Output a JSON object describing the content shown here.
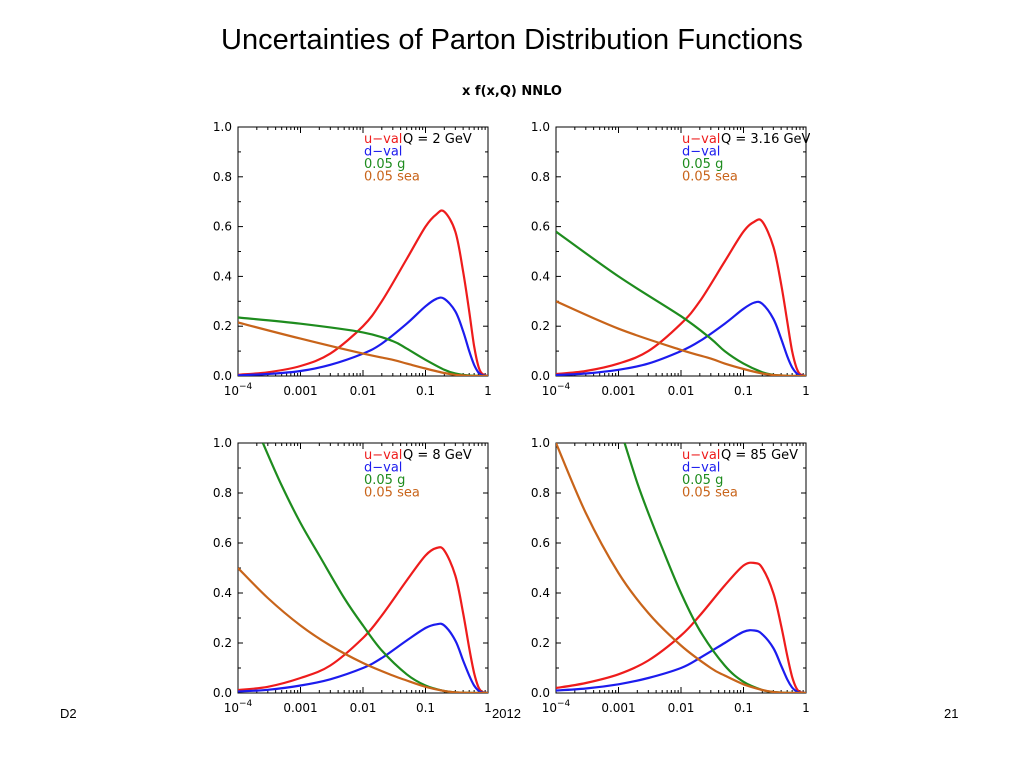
{
  "slide": {
    "title": "Uncertainties of Parton Distribution Functions",
    "footer_left": "D2",
    "footer_center": "2012",
    "footer_right": "21"
  },
  "figure_title": "x f(x,Q) NNLO",
  "colors": {
    "u_val": "#ee1c1c",
    "d_val": "#1c1cee",
    "g": "#1e8c1e",
    "sea": "#c8641a"
  },
  "chart_data": [
    {
      "type": "line",
      "annotation": "Q = 2 GeV",
      "x_scale": "log",
      "xlim": [
        0.0001,
        1
      ],
      "ylim": [
        0,
        1
      ],
      "xticks": [
        "10^-4",
        "0.001",
        "0.01",
        "0.1",
        "1"
      ],
      "yticks": [
        "0.0",
        "0.2",
        "0.4",
        "0.6",
        "0.8",
        "1.0"
      ],
      "legend": [
        "u−val",
        "d−val",
        "0.05 g",
        "0.05 sea"
      ],
      "legend_location": "top-right",
      "series": [
        {
          "name": "u−val",
          "color": "#ee1c1c",
          "x": [
            0.0001,
            0.0003,
            0.001,
            0.003,
            0.01,
            0.02,
            0.05,
            0.1,
            0.15,
            0.2,
            0.3,
            0.4,
            0.5,
            0.6,
            0.7,
            0.8,
            1
          ],
          "y": [
            0.005,
            0.015,
            0.04,
            0.09,
            0.2,
            0.3,
            0.47,
            0.6,
            0.65,
            0.66,
            0.58,
            0.42,
            0.26,
            0.12,
            0.04,
            0.01,
            0
          ]
        },
        {
          "name": "d−val",
          "color": "#1c1cee",
          "x": [
            0.0001,
            0.0003,
            0.001,
            0.003,
            0.01,
            0.02,
            0.05,
            0.1,
            0.15,
            0.2,
            0.3,
            0.4,
            0.5,
            0.6,
            0.7,
            0.8,
            1
          ],
          "y": [
            0.003,
            0.008,
            0.02,
            0.045,
            0.09,
            0.13,
            0.21,
            0.28,
            0.31,
            0.31,
            0.26,
            0.18,
            0.1,
            0.045,
            0.015,
            0.004,
            0
          ]
        },
        {
          "name": "0.05 g",
          "color": "#1e8c1e",
          "x": [
            0.0001,
            0.001,
            0.01,
            0.03,
            0.05,
            0.1,
            0.2,
            0.3,
            0.5,
            1
          ],
          "y": [
            0.235,
            0.21,
            0.175,
            0.14,
            0.11,
            0.065,
            0.025,
            0.01,
            0.002,
            0
          ]
        },
        {
          "name": "0.05 sea",
          "color": "#c8641a",
          "x": [
            0.0001,
            0.001,
            0.01,
            0.03,
            0.05,
            0.1,
            0.2,
            0.3,
            0.5,
            1
          ],
          "y": [
            0.215,
            0.15,
            0.09,
            0.065,
            0.05,
            0.03,
            0.012,
            0.005,
            0.001,
            0
          ]
        }
      ]
    },
    {
      "type": "line",
      "annotation": "Q = 3.16 GeV",
      "x_scale": "log",
      "xlim": [
        0.0001,
        1
      ],
      "ylim": [
        0,
        1
      ],
      "xticks": [
        "10^-4",
        "0.001",
        "0.01",
        "0.1",
        "1"
      ],
      "yticks": [
        "0.0",
        "0.2",
        "0.4",
        "0.6",
        "0.8",
        "1.0"
      ],
      "legend": [
        "u−val",
        "d−val",
        "0.05 g",
        "0.05 sea"
      ],
      "legend_location": "top-right",
      "series": [
        {
          "name": "u−val",
          "color": "#ee1c1c",
          "x": [
            0.0001,
            0.0003,
            0.001,
            0.003,
            0.01,
            0.02,
            0.05,
            0.1,
            0.15,
            0.2,
            0.3,
            0.4,
            0.5,
            0.6,
            0.7,
            0.8,
            1
          ],
          "y": [
            0.008,
            0.02,
            0.05,
            0.1,
            0.21,
            0.3,
            0.46,
            0.58,
            0.62,
            0.62,
            0.52,
            0.37,
            0.22,
            0.1,
            0.035,
            0.008,
            0
          ]
        },
        {
          "name": "d−val",
          "color": "#1c1cee",
          "x": [
            0.0001,
            0.0003,
            0.001,
            0.003,
            0.01,
            0.02,
            0.05,
            0.1,
            0.15,
            0.2,
            0.3,
            0.4,
            0.5,
            0.6,
            0.7,
            0.8,
            1
          ],
          "y": [
            0.004,
            0.01,
            0.025,
            0.05,
            0.1,
            0.14,
            0.21,
            0.27,
            0.295,
            0.29,
            0.23,
            0.15,
            0.08,
            0.035,
            0.012,
            0.003,
            0
          ]
        },
        {
          "name": "0.05 g",
          "color": "#1e8c1e",
          "x": [
            0.0001,
            0.001,
            0.01,
            0.03,
            0.05,
            0.1,
            0.2,
            0.3,
            0.5,
            1
          ],
          "y": [
            0.58,
            0.4,
            0.24,
            0.15,
            0.1,
            0.05,
            0.015,
            0.005,
            0.001,
            0
          ]
        },
        {
          "name": "0.05 sea",
          "color": "#c8641a",
          "x": [
            0.0001,
            0.001,
            0.01,
            0.03,
            0.05,
            0.1,
            0.2,
            0.3,
            0.5,
            1
          ],
          "y": [
            0.3,
            0.19,
            0.105,
            0.07,
            0.05,
            0.028,
            0.01,
            0.004,
            0.001,
            0
          ]
        }
      ]
    },
    {
      "type": "line",
      "annotation": "Q = 8 GeV",
      "x_scale": "log",
      "xlim": [
        0.0001,
        1
      ],
      "ylim": [
        0,
        1
      ],
      "xticks": [
        "10^-4",
        "0.001",
        "0.01",
        "0.1",
        "1"
      ],
      "yticks": [
        "0.0",
        "0.2",
        "0.4",
        "0.6",
        "0.8",
        "1.0"
      ],
      "legend": [
        "u−val",
        "d−val",
        "0.05 g",
        "0.05 sea"
      ],
      "legend_location": "top-right",
      "series": [
        {
          "name": "u−val",
          "color": "#ee1c1c",
          "x": [
            0.0001,
            0.0003,
            0.001,
            0.003,
            0.01,
            0.02,
            0.05,
            0.1,
            0.15,
            0.2,
            0.3,
            0.4,
            0.5,
            0.6,
            0.7,
            0.8,
            1
          ],
          "y": [
            0.012,
            0.025,
            0.06,
            0.11,
            0.22,
            0.31,
            0.45,
            0.55,
            0.58,
            0.57,
            0.47,
            0.32,
            0.18,
            0.08,
            0.025,
            0.005,
            0
          ]
        },
        {
          "name": "d−val",
          "color": "#1c1cee",
          "x": [
            0.0001,
            0.0003,
            0.001,
            0.003,
            0.01,
            0.02,
            0.05,
            0.1,
            0.15,
            0.2,
            0.3,
            0.4,
            0.5,
            0.6,
            0.7,
            0.8,
            1
          ],
          "y": [
            0.006,
            0.013,
            0.03,
            0.055,
            0.1,
            0.14,
            0.21,
            0.26,
            0.275,
            0.27,
            0.21,
            0.13,
            0.07,
            0.03,
            0.01,
            0.002,
            0
          ]
        },
        {
          "name": "0.05 g",
          "color": "#1e8c1e",
          "x": [
            0.00025,
            0.0005,
            0.001,
            0.002,
            0.005,
            0.01,
            0.02,
            0.05,
            0.1,
            0.2,
            0.3,
            0.5,
            1
          ],
          "y": [
            1.0,
            0.83,
            0.68,
            0.55,
            0.38,
            0.27,
            0.17,
            0.075,
            0.03,
            0.008,
            0.003,
            0.0005,
            0
          ]
        },
        {
          "name": "0.05 sea",
          "color": "#c8641a",
          "x": [
            0.0001,
            0.0003,
            0.001,
            0.003,
            0.01,
            0.03,
            0.05,
            0.1,
            0.2,
            0.3,
            0.5,
            1
          ],
          "y": [
            0.5,
            0.38,
            0.27,
            0.19,
            0.12,
            0.07,
            0.05,
            0.025,
            0.008,
            0.003,
            0.0005,
            0
          ]
        }
      ]
    },
    {
      "type": "line",
      "annotation": "Q = 85 GeV",
      "x_scale": "log",
      "xlim": [
        0.0001,
        1
      ],
      "ylim": [
        0,
        1
      ],
      "xticks": [
        "10^-4",
        "0.001",
        "0.01",
        "0.1",
        "1"
      ],
      "yticks": [
        "0.0",
        "0.2",
        "0.4",
        "0.6",
        "0.8",
        "1.0"
      ],
      "legend": [
        "u−val",
        "d−val",
        "0.05 g",
        "0.05 sea"
      ],
      "legend_location": "top-right",
      "series": [
        {
          "name": "u−val",
          "color": "#ee1c1c",
          "x": [
            0.0001,
            0.0003,
            0.001,
            0.003,
            0.01,
            0.02,
            0.05,
            0.1,
            0.15,
            0.2,
            0.3,
            0.4,
            0.5,
            0.6,
            0.7,
            0.8,
            1
          ],
          "y": [
            0.02,
            0.04,
            0.075,
            0.13,
            0.23,
            0.31,
            0.43,
            0.51,
            0.52,
            0.5,
            0.4,
            0.27,
            0.15,
            0.065,
            0.02,
            0.004,
            0
          ]
        },
        {
          "name": "d−val",
          "color": "#1c1cee",
          "x": [
            0.0001,
            0.0003,
            0.001,
            0.003,
            0.01,
            0.02,
            0.05,
            0.1,
            0.15,
            0.2,
            0.3,
            0.4,
            0.5,
            0.6,
            0.7,
            0.8,
            1
          ],
          "y": [
            0.01,
            0.018,
            0.035,
            0.06,
            0.1,
            0.14,
            0.2,
            0.245,
            0.25,
            0.235,
            0.18,
            0.11,
            0.055,
            0.022,
            0.007,
            0.001,
            0
          ]
        },
        {
          "name": "0.05 g",
          "color": "#1e8c1e",
          "x": [
            0.00125,
            0.002,
            0.003,
            0.005,
            0.01,
            0.02,
            0.05,
            0.1,
            0.2,
            0.3,
            0.5,
            1
          ],
          "y": [
            1.0,
            0.84,
            0.72,
            0.58,
            0.4,
            0.25,
            0.11,
            0.045,
            0.012,
            0.004,
            0.0005,
            0
          ]
        },
        {
          "name": "0.05 sea",
          "color": "#c8641a",
          "x": [
            0.0001,
            0.0003,
            0.001,
            0.003,
            0.01,
            0.03,
            0.05,
            0.1,
            0.2,
            0.3,
            0.5,
            1
          ],
          "y": [
            1.0,
            0.72,
            0.48,
            0.32,
            0.19,
            0.1,
            0.07,
            0.035,
            0.012,
            0.004,
            0.0005,
            0
          ]
        }
      ]
    }
  ]
}
